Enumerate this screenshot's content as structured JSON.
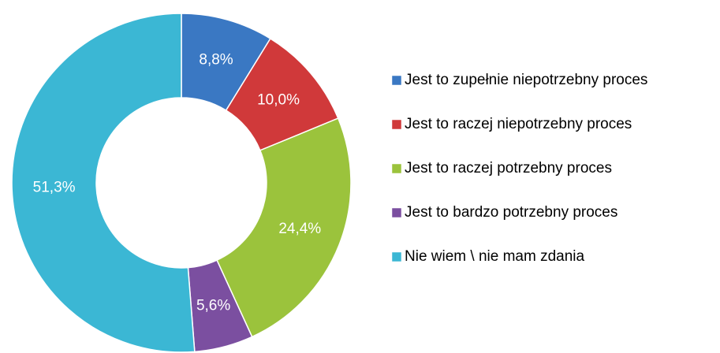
{
  "chart_data": {
    "type": "donut",
    "categories": [
      "Jest to zupełnie niepotrzebny proces",
      "Jest to raczej niepotrzebny proces",
      "Jest to raczej potrzebny proces",
      "Jest to bardzo potrzebny proces",
      "Nie wiem \\ nie mam zdania"
    ],
    "values": [
      8.8,
      10.0,
      24.4,
      5.6,
      51.3
    ],
    "value_labels": [
      "8,8%",
      "10,0%",
      "24,4%",
      "5,6%",
      "51,3%"
    ],
    "colors": [
      "#3a78c3",
      "#d0393a",
      "#9bc33c",
      "#7b4fa0",
      "#3bb7d4"
    ],
    "legend": "right"
  }
}
